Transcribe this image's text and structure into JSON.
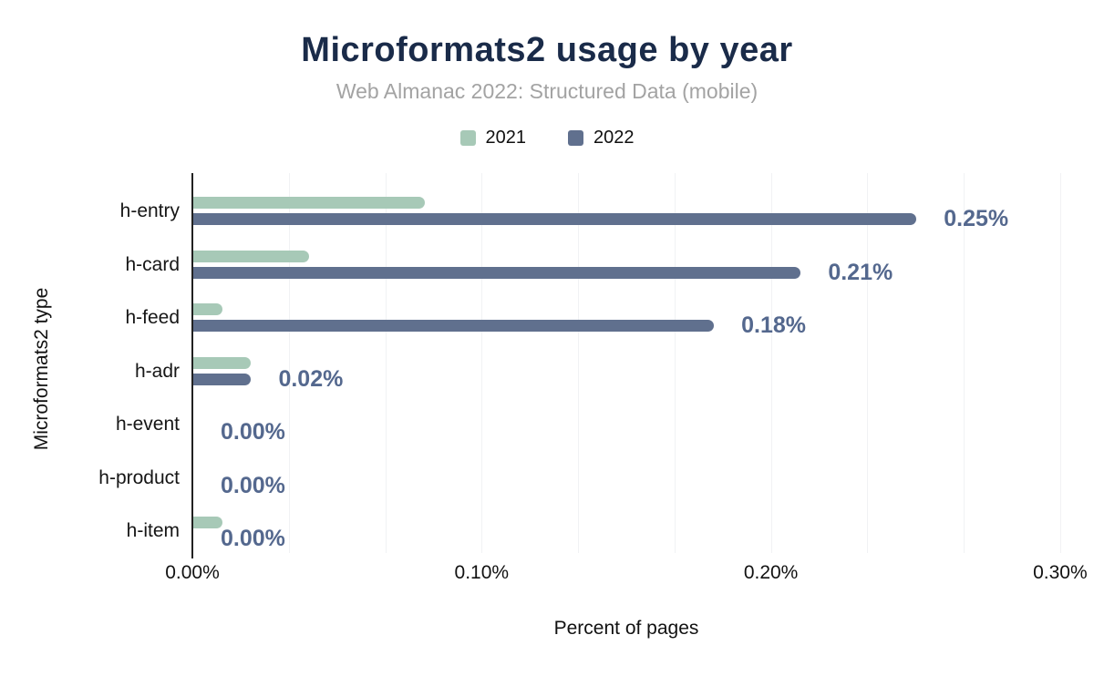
{
  "header": {
    "title": "Microformats2 usage by year",
    "subtitle": "Web Almanac 2022: Structured Data (mobile)"
  },
  "colors": {
    "title": "#1a2b49",
    "subtitle": "#a3a3a3",
    "value_label": "#54688e",
    "axis_line": "#212121",
    "gridline": "#f1f2f4"
  },
  "chart_data": {
    "type": "bar",
    "orientation": "horizontal",
    "title": "Microformats2 usage by year",
    "subtitle": "Web Almanac 2022: Structured Data (mobile)",
    "xlabel": "Percent of pages",
    "ylabel": "Microformats2 type",
    "xlim": [
      0,
      0.3
    ],
    "grid": "on",
    "gridline_interval_pct": 0.0333333,
    "legend_position": "top-center",
    "categories": [
      "h-entry",
      "h-card",
      "h-feed",
      "h-adr",
      "h-event",
      "h-product",
      "h-item"
    ],
    "series": [
      {
        "name": "2021",
        "color": "#a7c9b7",
        "values": [
          0.08,
          0.04,
          0.01,
          0.02,
          0,
          0,
          0.01
        ]
      },
      {
        "name": "2022",
        "color": "#60708e",
        "values": [
          0.25,
          0.21,
          0.18,
          0.02,
          0,
          0,
          0
        ]
      }
    ],
    "data_labels": {
      "on_series": "2022",
      "values": [
        "0.25%",
        "0.21%",
        "0.18%",
        "0.02%",
        "0.00%",
        "0.00%",
        "0.00%"
      ]
    },
    "x_ticks": [
      {
        "value": 0.0,
        "label": "0.00%"
      },
      {
        "value": 0.1,
        "label": "0.10%"
      },
      {
        "value": 0.2,
        "label": "0.20%"
      },
      {
        "value": 0.3,
        "label": "0.30%"
      }
    ]
  }
}
